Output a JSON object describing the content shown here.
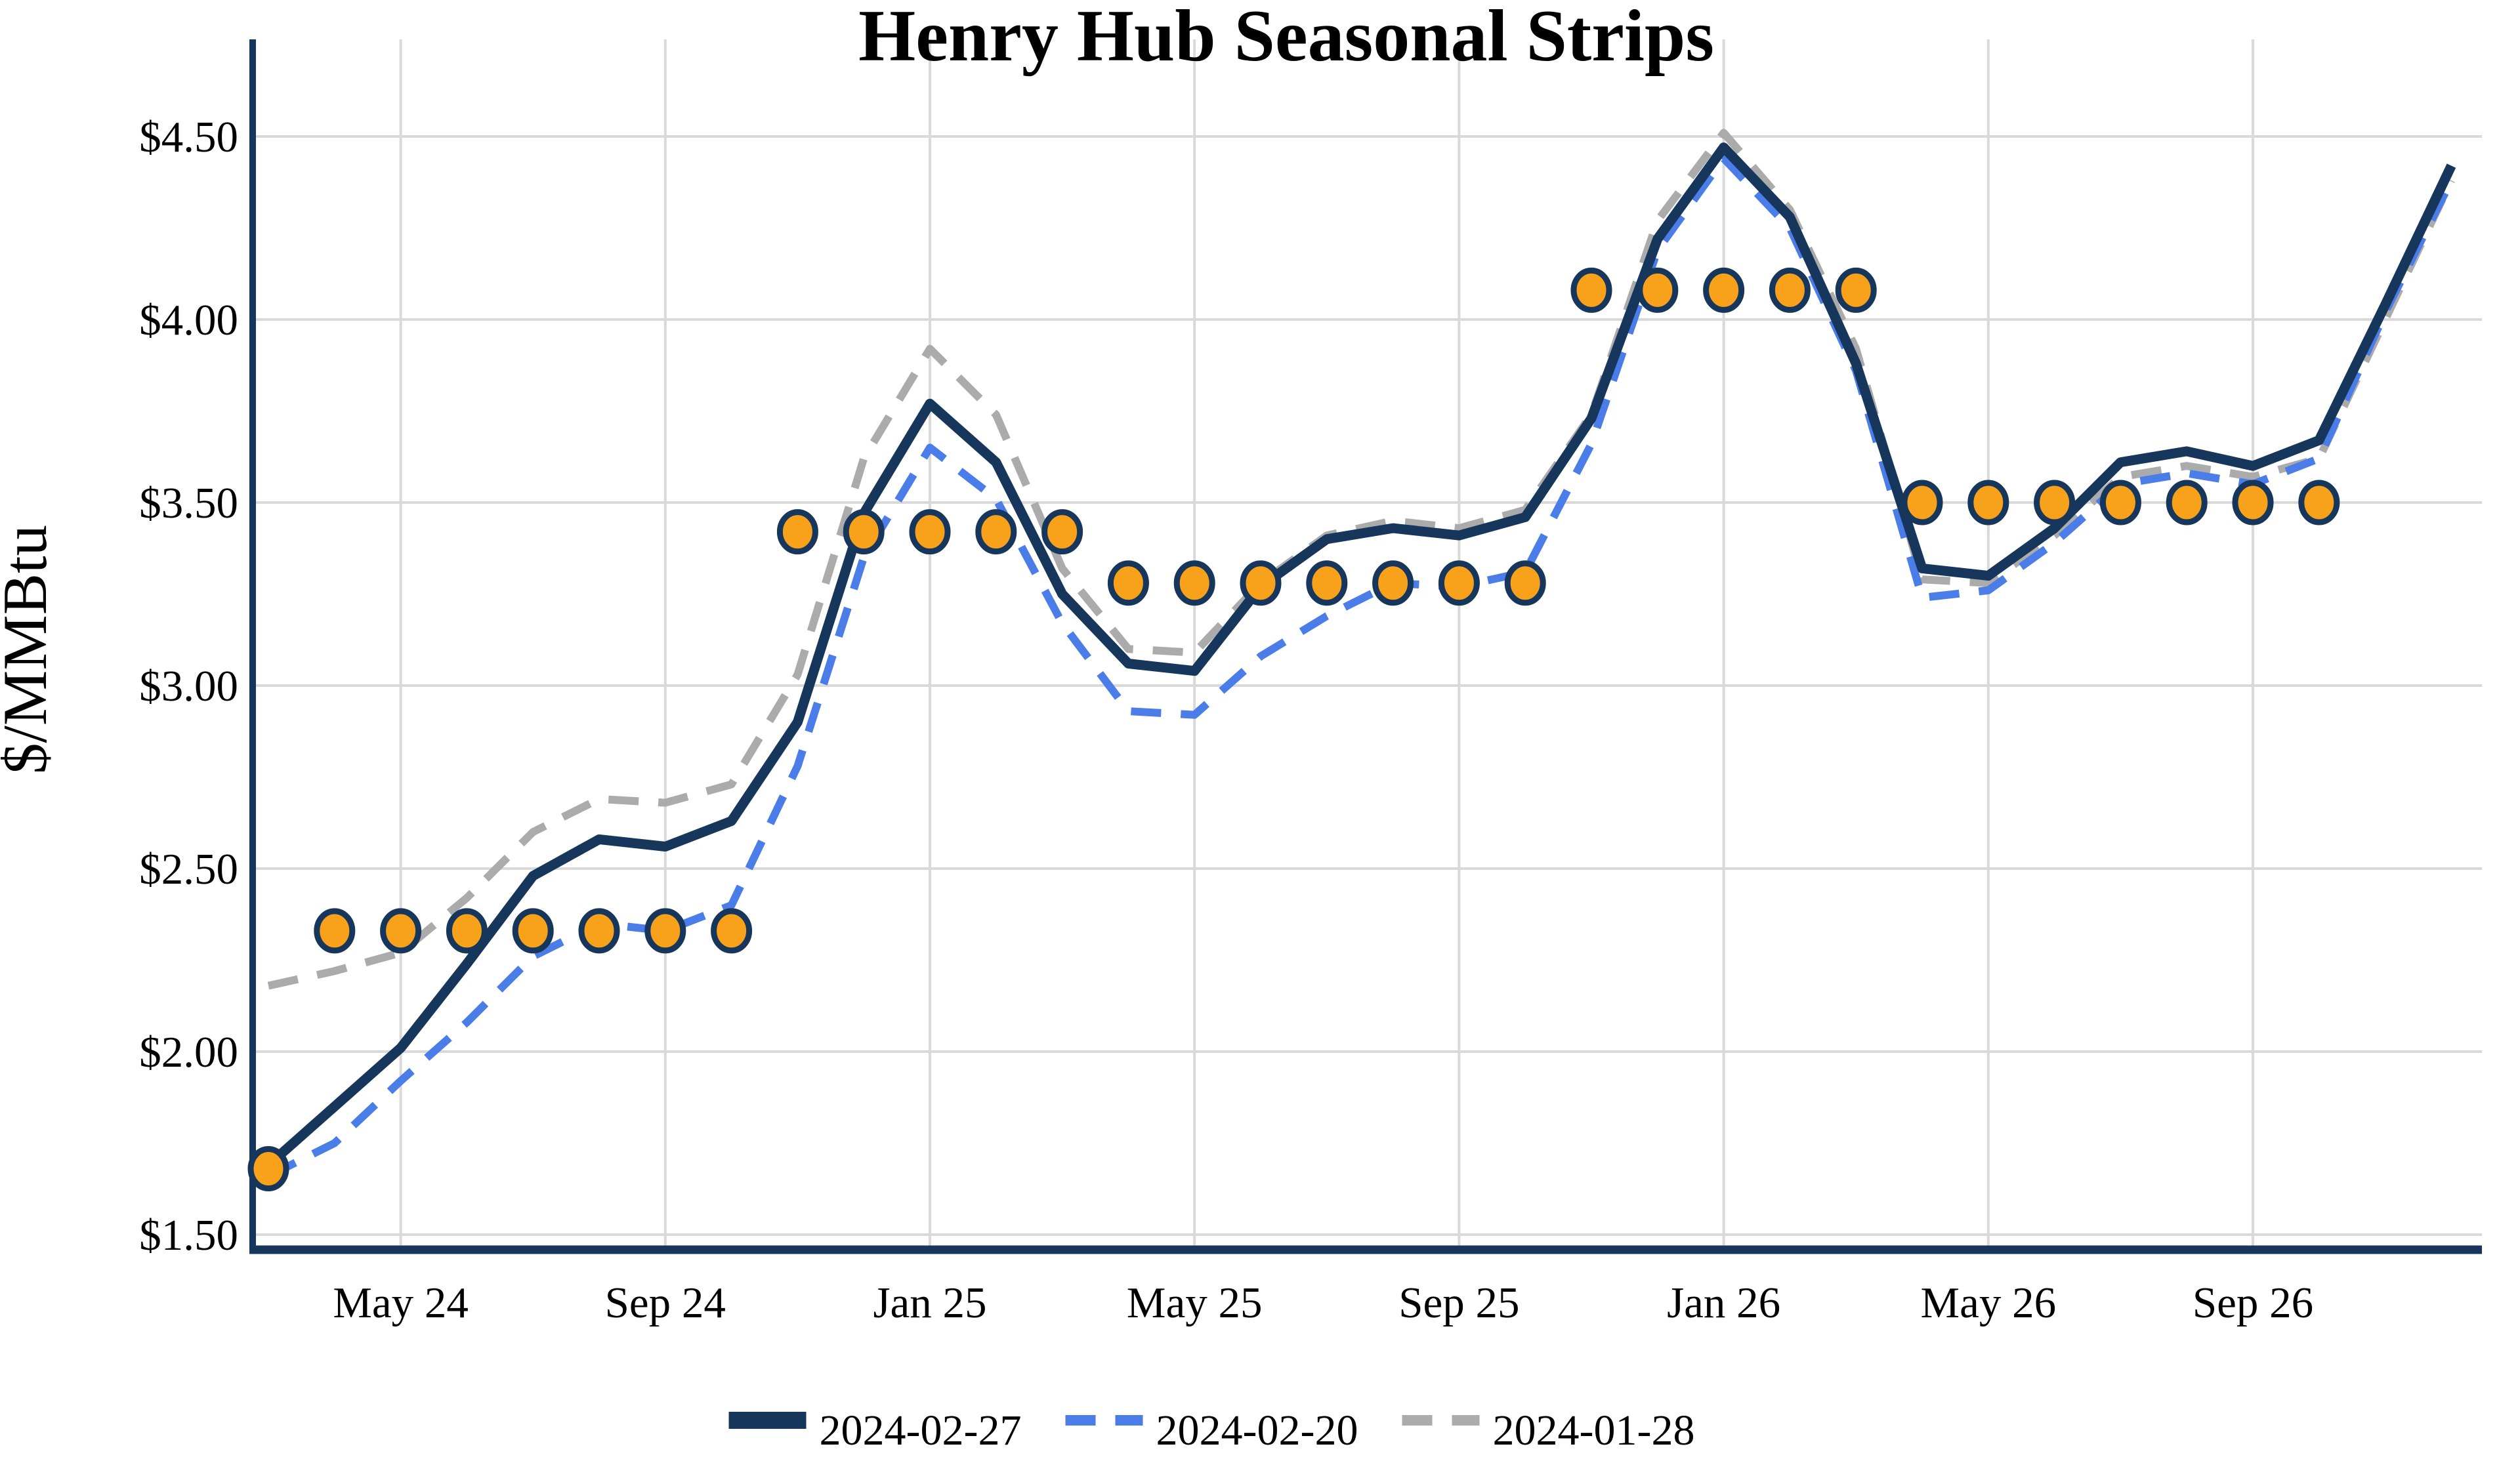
{
  "title": "Henry Hub Seasonal Strips",
  "y_axis": {
    "label": "$/MMBtu",
    "ticks": [
      {
        "label": "$4.50",
        "value": 4.5
      },
      {
        "label": "$4.00",
        "value": 4.0
      },
      {
        "label": "$3.50",
        "value": 3.5
      },
      {
        "label": "$3.00",
        "value": 3.0
      },
      {
        "label": "$2.50",
        "value": 2.5
      },
      {
        "label": "$2.00",
        "value": 2.0
      },
      {
        "label": "$1.50",
        "value": 1.5
      }
    ]
  },
  "x_axis": {
    "ticks": [
      {
        "label": "May 24",
        "month_index": 2
      },
      {
        "label": "Sep 24",
        "month_index": 6
      },
      {
        "label": "Jan 25",
        "month_index": 10
      },
      {
        "label": "May 25",
        "month_index": 14
      },
      {
        "label": "Sep 25",
        "month_index": 18
      },
      {
        "label": "Jan 26",
        "month_index": 22
      },
      {
        "label": "May 26",
        "month_index": 26
      },
      {
        "label": "Sep 26",
        "month_index": 30
      }
    ]
  },
  "legend": [
    {
      "label": "2024-02-27",
      "color": "#17365c",
      "style": "solid"
    },
    {
      "label": "2024-02-20",
      "color": "#4a7de8",
      "style": "dashed"
    },
    {
      "label": "2024-01-28",
      "color": "#ababab",
      "style": "dashed"
    }
  ],
  "colors": {
    "navy": "#17365c",
    "blue": "#4a7de8",
    "gray": "#ababab",
    "marker_fill": "#f8a21c",
    "marker_outline": "#17365c",
    "gridline": "#d9d9d9"
  },
  "chart_data": {
    "type": "line",
    "title": "Henry Hub Seasonal Strips",
    "ylabel": "$/MMBtu",
    "xlabel": "",
    "ylim": [
      1.5,
      4.5
    ],
    "grid": true,
    "legend_position": "bottom",
    "months": [
      "2024-03",
      "2024-04",
      "2024-05",
      "2024-06",
      "2024-07",
      "2024-08",
      "2024-09",
      "2024-10",
      "2024-11",
      "2024-12",
      "2025-01",
      "2025-02",
      "2025-03",
      "2025-04",
      "2025-05",
      "2025-06",
      "2025-07",
      "2025-08",
      "2025-09",
      "2025-10",
      "2025-11",
      "2025-12",
      "2026-01",
      "2026-02",
      "2026-03",
      "2026-04",
      "2026-05",
      "2026-06",
      "2026-07",
      "2026-08",
      "2026-09",
      "2026-10",
      "2026-11",
      "2026-12"
    ],
    "series": [
      {
        "name": "2024-02-27",
        "color": "#17365c",
        "style": "solid",
        "values": [
          1.69,
          1.85,
          2.01,
          2.24,
          2.48,
          2.58,
          2.56,
          2.63,
          2.9,
          3.47,
          3.77,
          3.61,
          3.25,
          3.06,
          3.04,
          3.27,
          3.4,
          3.43,
          3.41,
          3.46,
          3.73,
          4.22,
          4.47,
          4.28,
          3.88,
          3.32,
          3.3,
          3.43,
          3.61,
          3.64,
          3.6,
          3.67,
          4.04,
          4.42
        ]
      },
      {
        "name": "2024-02-20",
        "color": "#4a7de8",
        "style": "dashed",
        "values": [
          1.66,
          1.75,
          1.92,
          2.08,
          2.26,
          2.35,
          2.33,
          2.4,
          2.78,
          3.35,
          3.65,
          3.51,
          3.17,
          2.93,
          2.92,
          3.08,
          3.19,
          3.28,
          3.27,
          3.31,
          3.66,
          4.19,
          4.44,
          4.25,
          3.86,
          3.24,
          3.26,
          3.39,
          3.55,
          3.58,
          3.55,
          3.62,
          4.02,
          4.38
        ]
      },
      {
        "name": "2024-01-28",
        "color": "#ababab",
        "style": "dashed",
        "values": [
          2.18,
          2.22,
          2.27,
          2.42,
          2.6,
          2.69,
          2.68,
          2.73,
          3.03,
          3.62,
          3.92,
          3.74,
          3.32,
          3.1,
          3.09,
          3.28,
          3.41,
          3.45,
          3.43,
          3.48,
          3.74,
          4.27,
          4.51,
          4.3,
          3.92,
          3.29,
          3.28,
          3.41,
          3.57,
          3.6,
          3.57,
          3.62,
          4.0,
          4.38
        ]
      }
    ],
    "markers": {
      "name": "seasonal-strip-dots",
      "fill": "#f8a21c",
      "outline": "#17365c",
      "points": [
        {
          "month": "2024-03",
          "value": 1.68
        },
        {
          "month": "2024-04",
          "value": 2.33
        },
        {
          "month": "2024-05",
          "value": 2.33
        },
        {
          "month": "2024-06",
          "value": 2.33
        },
        {
          "month": "2024-07",
          "value": 2.33
        },
        {
          "month": "2024-08",
          "value": 2.33
        },
        {
          "month": "2024-09",
          "value": 2.33
        },
        {
          "month": "2024-10",
          "value": 2.33
        },
        {
          "month": "2024-11",
          "value": 3.42
        },
        {
          "month": "2024-12",
          "value": 3.42
        },
        {
          "month": "2025-01",
          "value": 3.42
        },
        {
          "month": "2025-02",
          "value": 3.42
        },
        {
          "month": "2025-03",
          "value": 3.42
        },
        {
          "month": "2025-04",
          "value": 3.28
        },
        {
          "month": "2025-05",
          "value": 3.28
        },
        {
          "month": "2025-06",
          "value": 3.28
        },
        {
          "month": "2025-07",
          "value": 3.28
        },
        {
          "month": "2025-08",
          "value": 3.28
        },
        {
          "month": "2025-09",
          "value": 3.28
        },
        {
          "month": "2025-10",
          "value": 3.28
        },
        {
          "month": "2025-11",
          "value": 4.08
        },
        {
          "month": "2025-12",
          "value": 4.08
        },
        {
          "month": "2026-01",
          "value": 4.08
        },
        {
          "month": "2026-02",
          "value": 4.08
        },
        {
          "month": "2026-03",
          "value": 4.08
        },
        {
          "month": "2026-04",
          "value": 3.5
        },
        {
          "month": "2026-05",
          "value": 3.5
        },
        {
          "month": "2026-06",
          "value": 3.5
        },
        {
          "month": "2026-07",
          "value": 3.5
        },
        {
          "month": "2026-08",
          "value": 3.5
        },
        {
          "month": "2026-09",
          "value": 3.5
        },
        {
          "month": "2026-10",
          "value": 3.5
        }
      ]
    }
  }
}
